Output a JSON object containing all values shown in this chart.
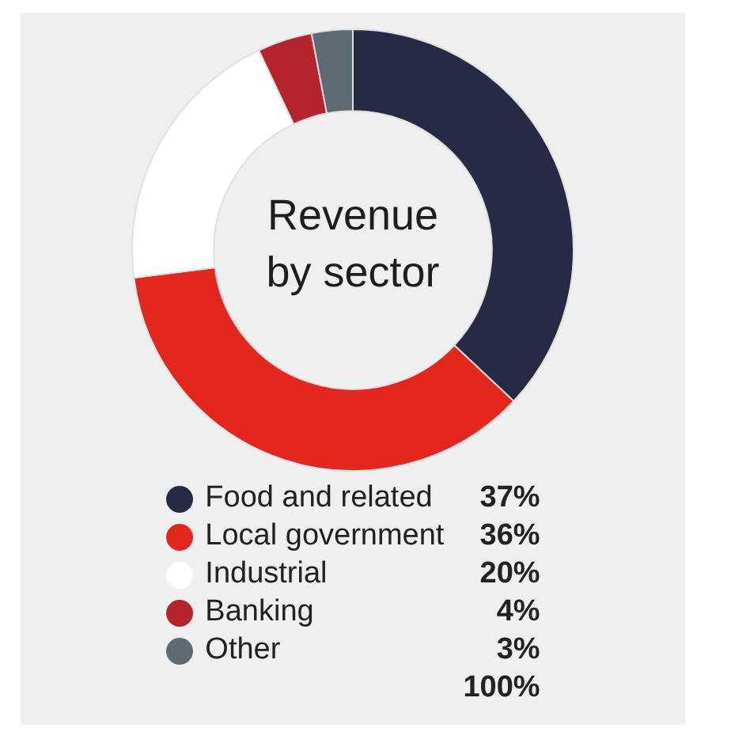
{
  "chart_data": {
    "type": "donut",
    "title": "Revenue by sector",
    "categories": [
      "Food and related",
      "Local government",
      "Industrial",
      "Banking",
      "Other"
    ],
    "values": [
      37,
      36,
      20,
      4,
      3
    ],
    "colors": [
      "#272a44",
      "#e3271f",
      "#ffffff",
      "#b5232d",
      "#5f6b73"
    ],
    "value_labels": [
      "37%",
      "36%",
      "20%",
      "4%",
      "3%"
    ],
    "legend": "bottom",
    "annotations": [
      "100%"
    ]
  }
}
